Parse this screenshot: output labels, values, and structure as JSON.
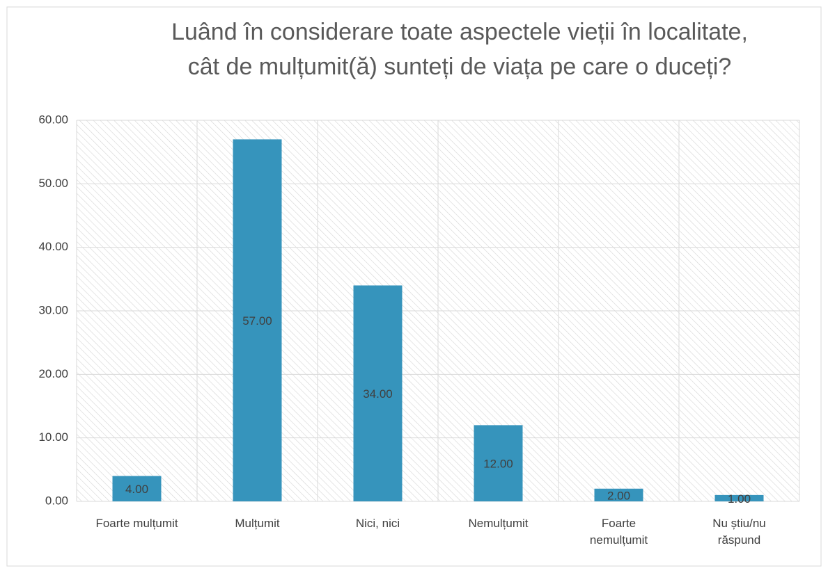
{
  "chart_data": {
    "type": "bar",
    "title": [
      "Luând în considerare toate aspectele vieții în localitate,",
      "cât de mulțumit(ă) sunteți de viața pe care o duceți?"
    ],
    "categories": [
      "Foarte mulțumit",
      "Mulțumit",
      "Nici, nici",
      "Nemulțumit",
      "Foarte nemulțumit",
      "Nu știu/nu răspund"
    ],
    "values": [
      4,
      57,
      34,
      12,
      2,
      1
    ],
    "value_labels": [
      "4.00",
      "57.00",
      "34.00",
      "12.00",
      "2.00",
      "1.00"
    ],
    "color": "#3694bc",
    "ylim": [
      0,
      60
    ],
    "yticks": [
      {
        "value": 0,
        "label": "0.00"
      },
      {
        "value": 10,
        "label": "10.00"
      },
      {
        "value": 20,
        "label": "20.00"
      },
      {
        "value": 30,
        "label": "30.00"
      },
      {
        "value": 40,
        "label": "40.00"
      },
      {
        "value": 50,
        "label": "50.00"
      },
      {
        "value": 60,
        "label": "60.00"
      }
    ],
    "grid": true
  }
}
